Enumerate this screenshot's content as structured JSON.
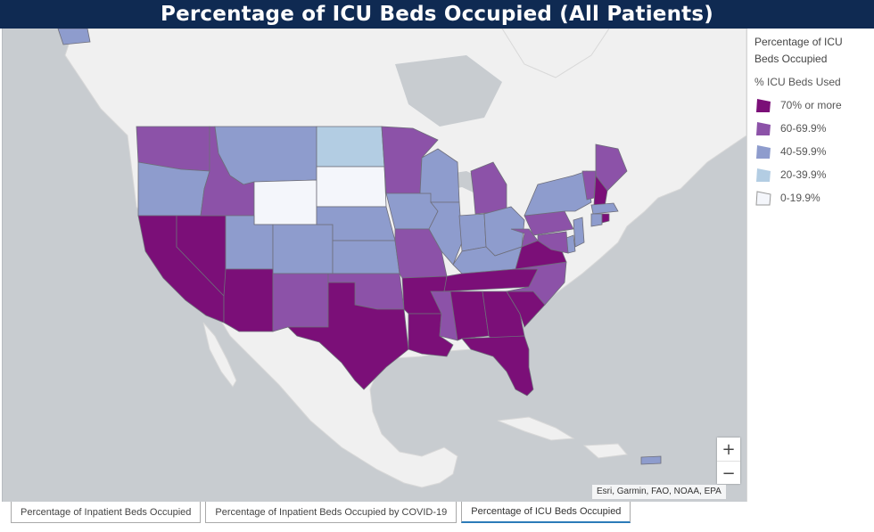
{
  "title": "Percentage of ICU Beds Occupied (All Patients)",
  "legend": {
    "title": "Percentage of ICU Beds Occupied",
    "field": "% ICU Beds Used",
    "classes": [
      {
        "label": "70% or more",
        "color": "#7b0f78"
      },
      {
        "label": "60-69.9%",
        "color": "#8c52a8"
      },
      {
        "label": "40-59.9%",
        "color": "#8e9ccd"
      },
      {
        "label": "20-39.9%",
        "color": "#b3cde3"
      },
      {
        "label": "0-19.9%",
        "color": "#f4f6fb"
      }
    ]
  },
  "colors": {
    "water": "#c8ccd0",
    "land": "#f0f0f0",
    "class_70_plus": "#7b0f78",
    "class_60_69": "#8c52a8",
    "class_40_59": "#8e9ccd",
    "class_20_39": "#b3cde3",
    "class_0_19": "#f4f6fb"
  },
  "state_classes": {
    "WA": "60-69.9%",
    "OR": "40-59.9%",
    "CA": "70% or more",
    "NV": "70% or more",
    "ID": "60-69.9%",
    "MT": "40-59.9%",
    "WY": "0-19.9%",
    "UT": "40-59.9%",
    "AZ": "70% or more",
    "CO": "40-59.9%",
    "NM": "60-69.9%",
    "ND": "20-39.9%",
    "SD": "0-19.9%",
    "NE": "40-59.9%",
    "KS": "40-59.9%",
    "OK": "60-69.9%",
    "TX": "70% or more",
    "MN": "60-69.9%",
    "IA": "40-59.9%",
    "MO": "60-69.9%",
    "AR": "70% or more",
    "LA": "70% or more",
    "WI": "40-59.9%",
    "IL": "40-59.9%",
    "MI": "60-69.9%",
    "IN": "40-59.9%",
    "OH": "40-59.9%",
    "KY": "40-59.9%",
    "TN": "70% or more",
    "MS": "60-69.9%",
    "AL": "70% or more",
    "GA": "70% or more",
    "FL": "70% or more",
    "SC": "70% or more",
    "NC": "60-69.9%",
    "VA": "70% or more",
    "WV": "60-69.9%",
    "PA": "60-69.9%",
    "NY": "40-59.9%",
    "ME": "60-69.9%",
    "VT": "60-69.9%",
    "NH": "70% or more",
    "MA": "40-59.9%",
    "MD": "60-69.9%",
    "NJ": "40-59.9%",
    "CT": "40-59.9%",
    "RI": "70% or more",
    "DE": "40-59.9%",
    "PR": "40-59.9%",
    "AK": "40-59.9%"
  },
  "zoom": {
    "in_label": "+",
    "out_label": "−"
  },
  "attribution": "Esri, Garmin, FAO, NOAA, EPA",
  "tabs": [
    {
      "label": "Percentage of Inpatient Beds Occupied",
      "active": false
    },
    {
      "label": "Percentage of Inpatient Beds Occupied by COVID-19",
      "active": false
    },
    {
      "label": "Percentage of ICU Beds Occupied",
      "active": true
    }
  ]
}
